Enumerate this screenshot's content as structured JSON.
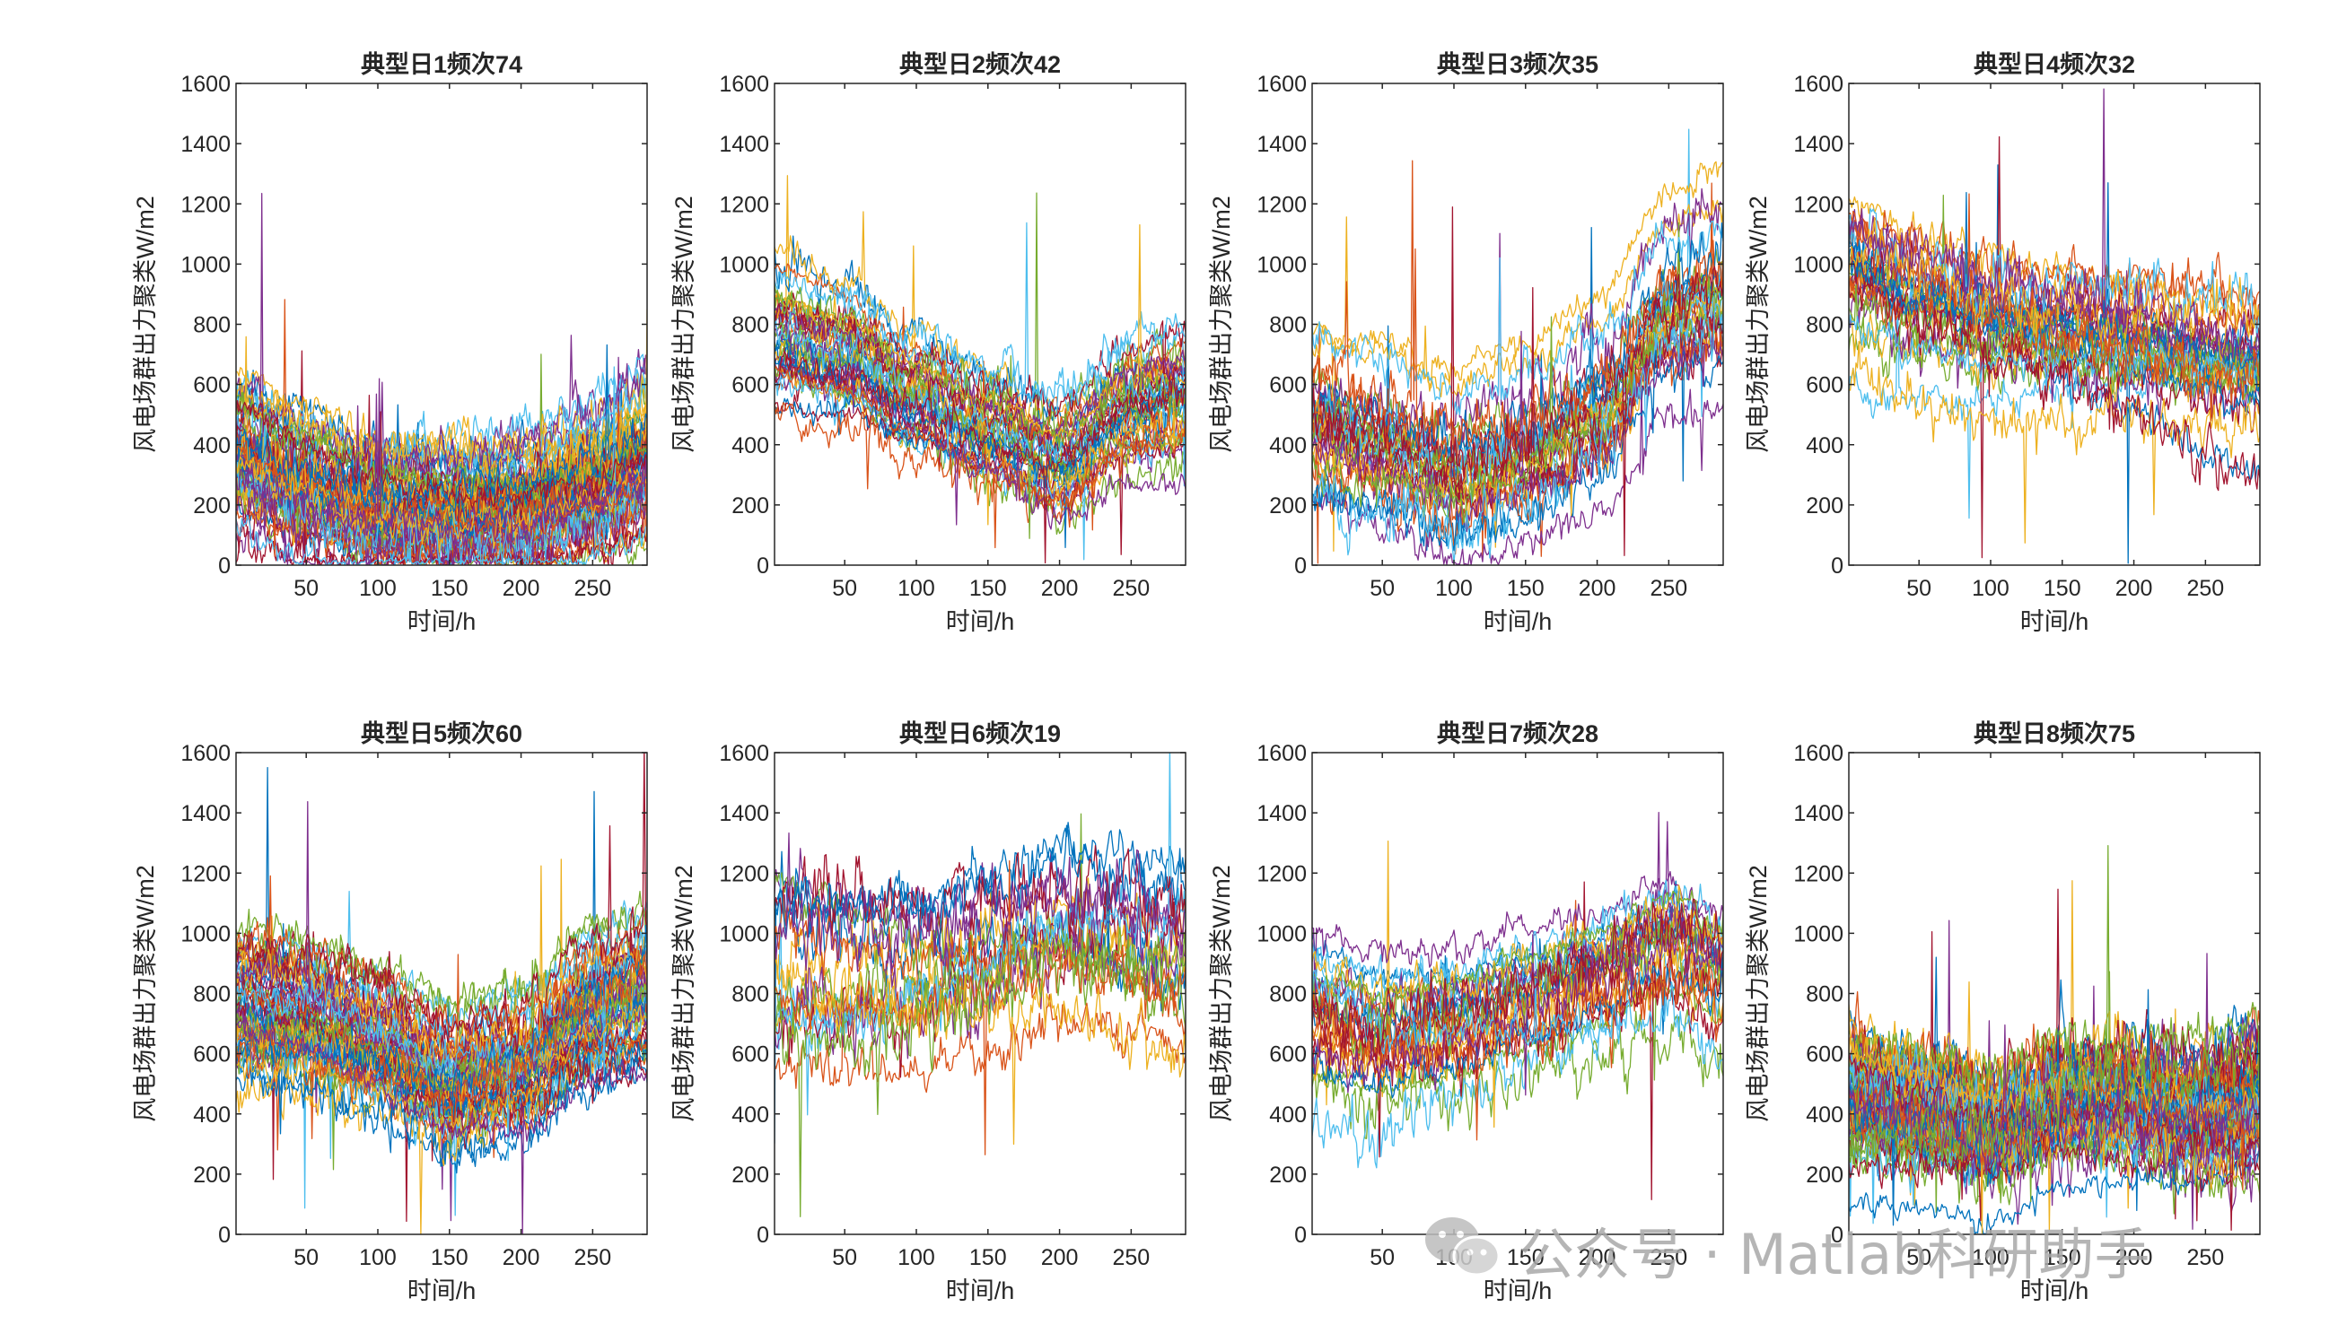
{
  "watermark": {
    "text": "公众号 · Matlab科研助手",
    "icon": "wechat-icon",
    "color": "#a9a9a9"
  },
  "chart_data": [
    {
      "type": "line",
      "title": "典型日1频次74",
      "xlabel": "时间/h",
      "ylabel": "风电场群出力聚类W/m2",
      "xlim": [
        1,
        288
      ],
      "ylim": [
        0,
        1600
      ],
      "xticks": [
        50,
        100,
        150,
        200,
        250
      ],
      "yticks": [
        0,
        200,
        400,
        600,
        800,
        1000,
        1200,
        1400,
        1600
      ],
      "series_count": 74,
      "mean_profile": [
        [
          0,
          320
        ],
        [
          50,
          230
        ],
        [
          100,
          160
        ],
        [
          150,
          160
        ],
        [
          200,
          170
        ],
        [
          250,
          250
        ],
        [
          288,
          340
        ]
      ],
      "spread": 110,
      "noise": 40
    },
    {
      "type": "line",
      "title": "典型日2频次42",
      "xlabel": "时间/h",
      "ylabel": "风电场群出力聚类W/m2",
      "xlim": [
        1,
        288
      ],
      "ylim": [
        0,
        1600
      ],
      "xticks": [
        50,
        100,
        150,
        200,
        250
      ],
      "yticks": [
        0,
        200,
        400,
        600,
        800,
        1000,
        1200,
        1400,
        1600
      ],
      "series_count": 42,
      "mean_profile": [
        [
          0,
          780
        ],
        [
          50,
          720
        ],
        [
          100,
          580
        ],
        [
          150,
          470
        ],
        [
          200,
          370
        ],
        [
          250,
          540
        ],
        [
          288,
          580
        ]
      ],
      "spread": 110,
      "noise": 35
    },
    {
      "type": "line",
      "title": "典型日3频次35",
      "xlabel": "时间/h",
      "ylabel": "风电场群出力聚类W/m2",
      "xlim": [
        1,
        288
      ],
      "ylim": [
        0,
        1600
      ],
      "xticks": [
        50,
        100,
        150,
        200,
        250
      ],
      "yticks": [
        0,
        200,
        400,
        600,
        800,
        1000,
        1200,
        1400,
        1600
      ],
      "series_count": 35,
      "mean_profile": [
        [
          0,
          500
        ],
        [
          50,
          430
        ],
        [
          100,
          330
        ],
        [
          150,
          390
        ],
        [
          200,
          520
        ],
        [
          250,
          850
        ],
        [
          288,
          900
        ]
      ],
      "spread": 130,
      "noise": 45
    },
    {
      "type": "line",
      "title": "典型日4频次32",
      "xlabel": "时间/h",
      "ylabel": "风电场群出力聚类W/m2",
      "xlim": [
        1,
        288
      ],
      "ylim": [
        0,
        1600
      ],
      "xticks": [
        50,
        100,
        150,
        200,
        250
      ],
      "yticks": [
        0,
        200,
        400,
        600,
        800,
        1000,
        1200,
        1400,
        1600
      ],
      "series_count": 32,
      "mean_profile": [
        [
          0,
          1000
        ],
        [
          50,
          900
        ],
        [
          100,
          820
        ],
        [
          150,
          780
        ],
        [
          200,
          740
        ],
        [
          250,
          680
        ],
        [
          288,
          660
        ]
      ],
      "spread": 120,
      "noise": 45
    },
    {
      "type": "line",
      "title": "典型日5频次60",
      "xlabel": "时间/h",
      "ylabel": "风电场群出力聚类W/m2",
      "xlim": [
        1,
        288
      ],
      "ylim": [
        0,
        1600
      ],
      "xticks": [
        50,
        100,
        150,
        200,
        250
      ],
      "yticks": [
        0,
        200,
        400,
        600,
        800,
        1000,
        1200,
        1400,
        1600
      ],
      "series_count": 60,
      "mean_profile": [
        [
          0,
          760
        ],
        [
          50,
          730
        ],
        [
          100,
          640
        ],
        [
          150,
          520
        ],
        [
          200,
          570
        ],
        [
          250,
          760
        ],
        [
          288,
          820
        ]
      ],
      "spread": 110,
      "noise": 40
    },
    {
      "type": "line",
      "title": "典型日6频次19",
      "xlabel": "时间/h",
      "ylabel": "风电场群出力聚类W/m2",
      "xlim": [
        1,
        288
      ],
      "ylim": [
        0,
        1600
      ],
      "xticks": [
        50,
        100,
        150,
        200,
        250
      ],
      "yticks": [
        0,
        200,
        400,
        600,
        800,
        1000,
        1200,
        1400,
        1600
      ],
      "series_count": 19,
      "mean_profile": [
        [
          0,
          950
        ],
        [
          50,
          930
        ],
        [
          100,
          920
        ],
        [
          150,
          980
        ],
        [
          200,
          1060
        ],
        [
          250,
          1030
        ],
        [
          288,
          980
        ]
      ],
      "spread": 150,
      "noise": 60
    },
    {
      "type": "line",
      "title": "典型日7频次28",
      "xlabel": "时间/h",
      "ylabel": "风电场群出力聚类W/m2",
      "xlim": [
        1,
        288
      ],
      "ylim": [
        0,
        1600
      ],
      "xticks": [
        50,
        100,
        150,
        200,
        250
      ],
      "yticks": [
        0,
        200,
        400,
        600,
        800,
        1000,
        1200,
        1400,
        1600
      ],
      "series_count": 28,
      "mean_profile": [
        [
          0,
          720
        ],
        [
          50,
          660
        ],
        [
          100,
          700
        ],
        [
          150,
          770
        ],
        [
          200,
          850
        ],
        [
          250,
          960
        ],
        [
          288,
          860
        ]
      ],
      "spread": 120,
      "noise": 45
    },
    {
      "type": "line",
      "title": "典型日8频次75",
      "xlabel": "时间/h",
      "ylabel": "风电场群出力聚类W/m2",
      "xlim": [
        1,
        288
      ],
      "ylim": [
        0,
        1600
      ],
      "xticks": [
        50,
        100,
        150,
        200,
        250
      ],
      "yticks": [
        0,
        200,
        400,
        600,
        800,
        1000,
        1200,
        1400,
        1600
      ],
      "series_count": 75,
      "mean_profile": [
        [
          0,
          450
        ],
        [
          50,
          400
        ],
        [
          100,
          330
        ],
        [
          150,
          420
        ],
        [
          200,
          410
        ],
        [
          250,
          380
        ],
        [
          288,
          430
        ]
      ],
      "spread": 110,
      "noise": 50
    }
  ],
  "series_colors": [
    "#0072BD",
    "#D95319",
    "#EDB120",
    "#7E2F8E",
    "#77AC30",
    "#4DBEEE",
    "#A2142F"
  ]
}
